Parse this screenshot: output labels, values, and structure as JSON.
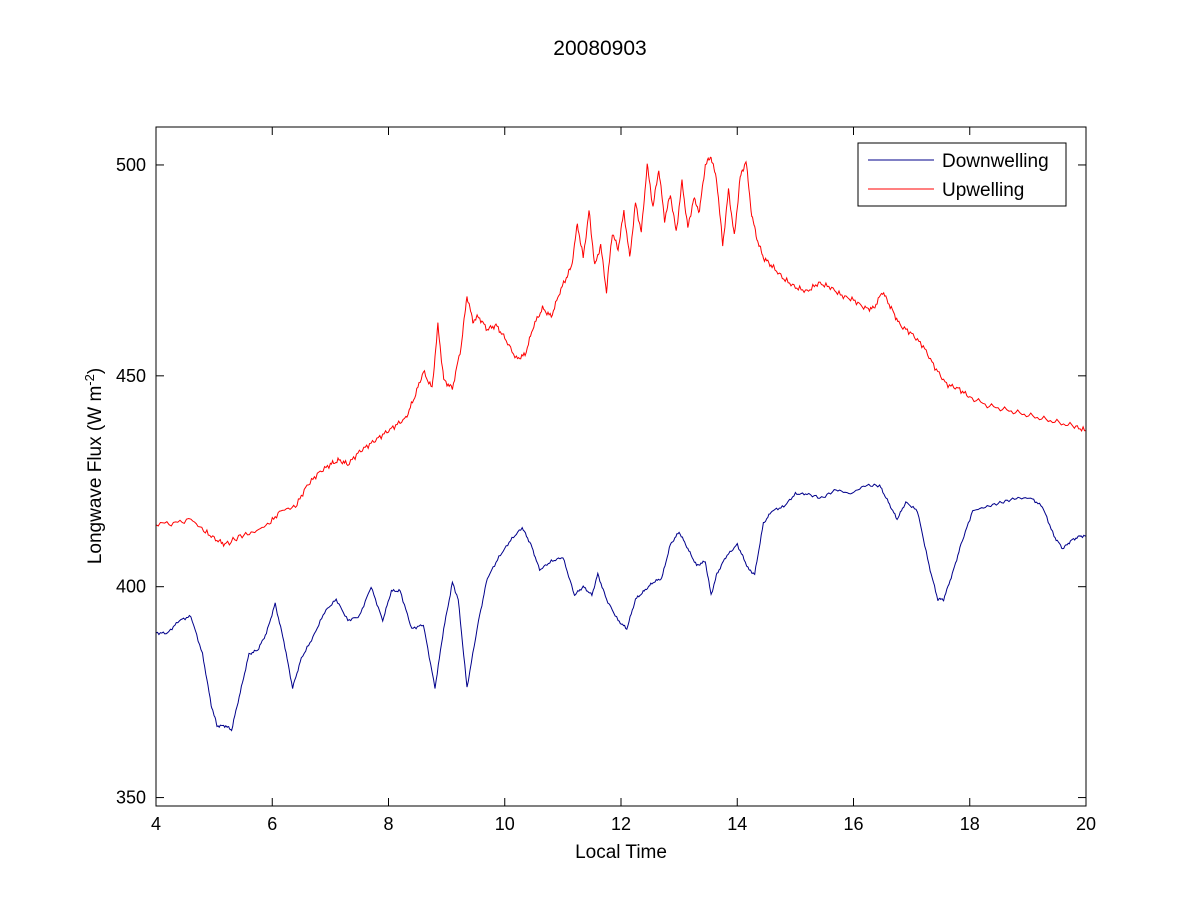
{
  "chart_data": {
    "type": "line",
    "title": "20080903",
    "xlabel": "Local Time",
    "ylabel": "Longwave Flux (W m",
    "ylabel_sup": "-2",
    "ylabel_close": ")",
    "xlim": [
      4,
      20
    ],
    "ylim": [
      348,
      509
    ],
    "xticks": [
      4,
      6,
      8,
      10,
      12,
      14,
      16,
      18,
      20
    ],
    "yticks": [
      350,
      400,
      450,
      500
    ],
    "grid": false,
    "legend_position": "top-right",
    "series": [
      {
        "name": "Downwelling",
        "color": "#00008b",
        "x": [
          4.0,
          4.2,
          4.4,
          4.6,
          4.8,
          4.95,
          5.05,
          5.2,
          5.3,
          5.45,
          5.6,
          5.75,
          5.9,
          6.05,
          6.2,
          6.35,
          6.5,
          6.7,
          6.9,
          7.1,
          7.3,
          7.5,
          7.7,
          7.9,
          8.05,
          8.2,
          8.4,
          8.6,
          8.8,
          8.95,
          9.1,
          9.2,
          9.35,
          9.55,
          9.7,
          9.9,
          10.1,
          10.3,
          10.45,
          10.6,
          10.8,
          11.0,
          11.2,
          11.35,
          11.5,
          11.6,
          11.75,
          11.95,
          12.1,
          12.25,
          12.4,
          12.55,
          12.7,
          12.85,
          13.0,
          13.15,
          13.3,
          13.45,
          13.55,
          13.65,
          13.8,
          14.0,
          14.1,
          14.2,
          14.3,
          14.45,
          14.6,
          14.8,
          15.0,
          15.2,
          15.45,
          15.7,
          15.95,
          16.2,
          16.45,
          16.6,
          16.75,
          16.9,
          17.1,
          17.3,
          17.45,
          17.55,
          17.7,
          17.85,
          18.05,
          18.3,
          18.55,
          18.8,
          19.05,
          19.25,
          19.45,
          19.6,
          19.75,
          19.9,
          20.0
        ],
        "y": [
          389,
          389,
          392,
          393,
          384,
          372,
          367,
          367,
          366,
          375,
          384,
          385,
          389,
          396,
          387,
          376,
          383,
          388,
          394,
          397,
          392,
          393,
          400,
          392,
          399,
          399,
          390,
          391,
          376,
          390,
          401,
          397,
          376,
          392,
          402,
          407,
          411,
          414,
          410,
          404,
          406,
          407,
          398,
          400,
          398,
          403,
          397,
          392,
          390,
          397,
          399,
          401,
          402,
          410,
          413,
          409,
          405,
          406,
          398,
          403,
          407,
          410,
          407,
          404,
          403,
          415,
          418,
          419,
          422,
          422,
          421,
          423,
          422,
          424,
          424,
          420,
          416,
          420,
          418,
          405,
          397,
          397,
          403,
          410,
          418,
          419,
          420,
          421,
          421,
          419,
          412,
          409,
          411,
          412,
          412
        ]
      },
      {
        "name": "Upwelling",
        "color": "#ff0000",
        "x": [
          4.0,
          4.3,
          4.6,
          4.85,
          5.05,
          5.2,
          5.45,
          5.7,
          5.95,
          6.15,
          6.4,
          6.6,
          6.8,
          7.0,
          7.15,
          7.3,
          7.5,
          7.7,
          7.9,
          8.1,
          8.3,
          8.45,
          8.6,
          8.75,
          8.85,
          8.95,
          9.1,
          9.25,
          9.35,
          9.45,
          9.55,
          9.7,
          9.85,
          10.0,
          10.2,
          10.35,
          10.5,
          10.65,
          10.8,
          10.95,
          11.05,
          11.15,
          11.25,
          11.35,
          11.45,
          11.55,
          11.65,
          11.75,
          11.85,
          11.95,
          12.05,
          12.15,
          12.25,
          12.35,
          12.45,
          12.55,
          12.65,
          12.75,
          12.85,
          12.95,
          13.05,
          13.15,
          13.25,
          13.35,
          13.45,
          13.55,
          13.65,
          13.75,
          13.85,
          13.95,
          14.05,
          14.15,
          14.25,
          14.35,
          14.45,
          14.6,
          14.8,
          15.0,
          15.2,
          15.4,
          15.6,
          15.8,
          16.0,
          16.2,
          16.35,
          16.5,
          16.65,
          16.8,
          17.0,
          17.2,
          17.4,
          17.6,
          17.8,
          18.0,
          18.3,
          18.6,
          18.9,
          19.2,
          19.5,
          19.8,
          20.0
        ],
        "y": [
          415,
          415,
          416,
          413,
          411,
          410,
          412,
          413,
          415,
          418,
          419,
          424,
          427,
          429,
          430,
          429,
          432,
          434,
          436,
          438,
          440,
          445,
          451,
          447,
          462,
          449,
          447,
          457,
          469,
          463,
          464,
          461,
          462,
          459,
          454,
          455,
          462,
          466,
          464,
          470,
          473,
          476,
          486,
          478,
          489,
          476,
          481,
          470,
          484,
          480,
          489,
          478,
          491,
          484,
          500,
          490,
          499,
          487,
          493,
          484,
          496,
          485,
          492,
          489,
          500,
          502,
          496,
          481,
          494,
          483,
          497,
          501,
          488,
          482,
          478,
          476,
          473,
          471,
          470,
          472,
          471,
          469,
          468,
          466,
          466,
          470,
          466,
          462,
          460,
          457,
          452,
          448,
          447,
          445,
          443,
          442,
          441,
          440,
          439,
          438,
          437
        ]
      }
    ]
  }
}
